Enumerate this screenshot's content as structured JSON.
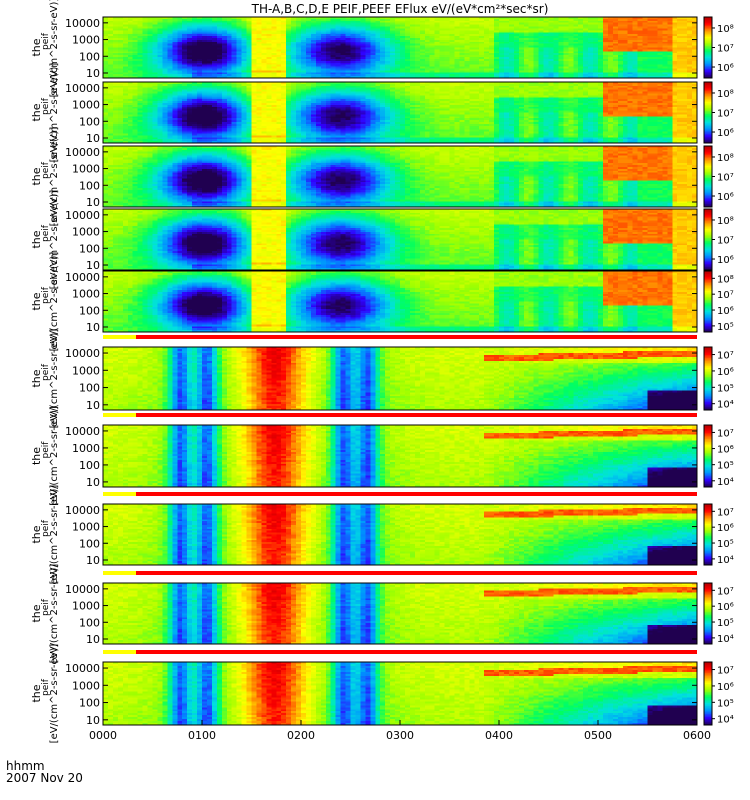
{
  "chart_data": {
    "type": "heatmap",
    "title": "TH-A,B,C,D,E PEIF,PEEF EFlux eV/(eV*cm²*sec*sr)",
    "x_ticks": [
      "0000",
      "0100",
      "0200",
      "0300",
      "0400",
      "0500",
      "0600"
    ],
    "x_label": "hhmm",
    "date_label": "2007 Nov 20",
    "y_ticks": [
      "10000",
      "1000",
      "100",
      "10"
    ],
    "y_scale": "log",
    "panels": [
      {
        "group": "ion",
        "ylabel_main": "the",
        "ylabel_sub": "peif",
        "ylabel_unit": "[eV/(cm^2-s-sr-eV)]",
        "colorbar_ticks": [
          "10⁸",
          "10⁷",
          "10⁶"
        ]
      },
      {
        "group": "ion",
        "ylabel_main": "the",
        "ylabel_sub": "peif",
        "ylabel_unit": "[eV/(cm^2-s-sr-eV)]",
        "colorbar_ticks": [
          "10⁸",
          "10⁷",
          "10⁶"
        ]
      },
      {
        "group": "ion",
        "ylabel_main": "the",
        "ylabel_sub": "peif",
        "ylabel_unit": "[eV/(cm^2-s-sr-eV)]",
        "colorbar_ticks": [
          "10⁸",
          "10⁷",
          "10⁶"
        ]
      },
      {
        "group": "ion",
        "ylabel_main": "the",
        "ylabel_sub": "peif",
        "ylabel_unit": "[eV/(cm^2-s-sr-eV)]",
        "colorbar_ticks": [
          "10⁸",
          "10⁷",
          "10⁶"
        ]
      },
      {
        "group": "ion",
        "ylabel_main": "the",
        "ylabel_sub": "peif",
        "ylabel_unit": "[eV/(cm^2-s-sr-eV)]",
        "colorbar_ticks": [
          "10⁸",
          "10⁷",
          "10⁶",
          "10⁵"
        ]
      },
      {
        "group": "electron",
        "ylabel_main": "the",
        "ylabel_sub": "peif",
        "ylabel_unit": "[eV/(cm^2-s-sr-eV)]",
        "colorbar_ticks": [
          "10⁷",
          "10⁶",
          "10⁵",
          "10⁴"
        ]
      },
      {
        "group": "electron",
        "ylabel_main": "the",
        "ylabel_sub": "peif",
        "ylabel_unit": "[eV/(cm^2-s-sr-eV)]",
        "colorbar_ticks": [
          "10⁷",
          "10⁶",
          "10⁵",
          "10⁴"
        ]
      },
      {
        "group": "electron",
        "ylabel_main": "the",
        "ylabel_sub": "peif",
        "ylabel_unit": "[eV/(cm^2-s-sr-eV)]",
        "colorbar_ticks": [
          "10⁷",
          "10⁶",
          "10⁵",
          "10⁴"
        ]
      },
      {
        "group": "electron",
        "ylabel_main": "the",
        "ylabel_sub": "peif",
        "ylabel_unit": "[eV/(cm^2-s-sr-eV)]",
        "colorbar_ticks": [
          "10⁷",
          "10⁶",
          "10⁵",
          "10⁴"
        ]
      },
      {
        "group": "electron",
        "ylabel_main": "the",
        "ylabel_sub": "peif",
        "ylabel_unit": "[eV/(cm^2-s-sr-eV)]",
        "colorbar_ticks": [
          "10⁷",
          "10⁶",
          "10⁵",
          "10⁴"
        ]
      }
    ],
    "mode_bar": {
      "yellow_until": "0020",
      "yellow_color": "#ffff00",
      "red_color": "#ff0000"
    },
    "colormap": [
      "#200050",
      "#3000ff",
      "#0090ff",
      "#00e0e0",
      "#00ff60",
      "#a0ff00",
      "#ffff00",
      "#ff9000",
      "#ff0000",
      "#b00000"
    ]
  }
}
